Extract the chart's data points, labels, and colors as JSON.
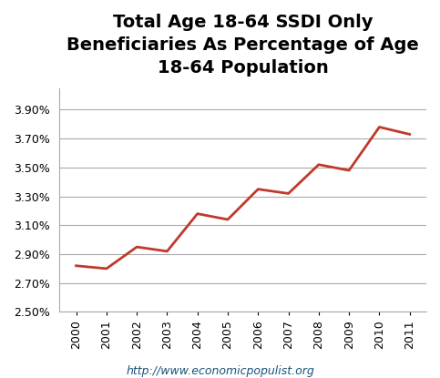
{
  "title": "Total Age 18-64 SSDI Only\nBeneficiaries As Percentage of Age\n18-64 Population",
  "years": [
    2000,
    2001,
    2002,
    2003,
    2004,
    2005,
    2006,
    2007,
    2008,
    2009,
    2010,
    2011
  ],
  "values": [
    0.0282,
    0.028,
    0.0295,
    0.0292,
    0.0318,
    0.0314,
    0.0335,
    0.0332,
    0.0352,
    0.0348,
    0.0378,
    0.0373
  ],
  "line_color": "#c0392b",
  "line_width": 2.0,
  "ylim": [
    0.025,
    0.0405
  ],
  "yticks": [
    0.025,
    0.027,
    0.029,
    0.031,
    0.033,
    0.035,
    0.037,
    0.039
  ],
  "background_color": "#ffffff",
  "grid_color": "#aaaaaa",
  "footer": "http://www.economicpopulist.org",
  "title_fontsize": 14,
  "tick_fontsize": 9,
  "footer_fontsize": 9
}
